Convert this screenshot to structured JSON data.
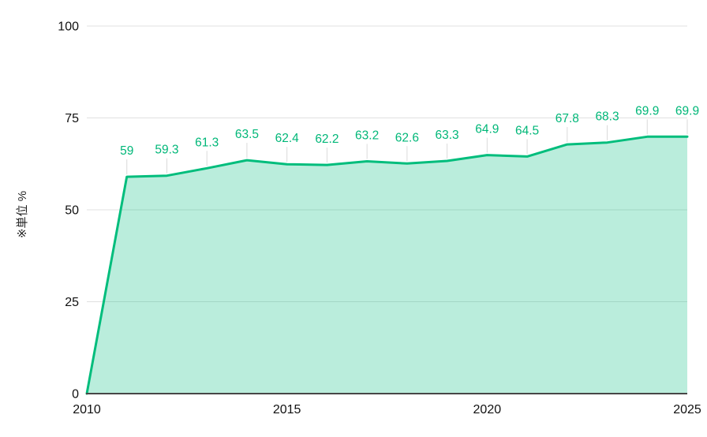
{
  "chart_data": {
    "type": "area",
    "title": "",
    "xlabel": "",
    "ylabel": "※単位 %",
    "x": [
      2010,
      2011,
      2012,
      2013,
      2014,
      2015,
      2016,
      2017,
      2018,
      2019,
      2020,
      2021,
      2022,
      2023,
      2024,
      2025
    ],
    "values": [
      0,
      59,
      59.3,
      61.3,
      63.5,
      62.4,
      62.2,
      63.2,
      62.6,
      63.3,
      64.9,
      64.5,
      67.8,
      68.3,
      69.9,
      69.9
    ],
    "point_labels": [
      null,
      "59",
      "59.3",
      "61.3",
      "63.5",
      "62.4",
      "62.2",
      "63.2",
      "62.6",
      "63.3",
      "64.9",
      "64.5",
      "67.8",
      "68.3",
      "69.9",
      "69.9"
    ],
    "y_ticks": [
      0,
      25,
      50,
      75,
      100
    ],
    "y_tick_labels": [
      "0",
      "25",
      "50",
      "75",
      "100"
    ],
    "x_ticks": [
      2010,
      2015,
      2020,
      2025
    ],
    "x_tick_labels": [
      "2010",
      "2015",
      "2020",
      "2025"
    ],
    "ylim": [
      0,
      100
    ],
    "xlim": [
      2010,
      2025
    ],
    "grid": true,
    "legend": "none",
    "colors": {
      "line": "#00bd7c",
      "fill": "#00bd7c",
      "fill_opacity": 0.27,
      "data_label": "#00b778",
      "grid": "#e0e0e0",
      "connector": "#dadada",
      "axis_line": "#474747",
      "tick_text": "#111111",
      "axis_title_text": "#222222",
      "background": "#ffffff"
    }
  }
}
